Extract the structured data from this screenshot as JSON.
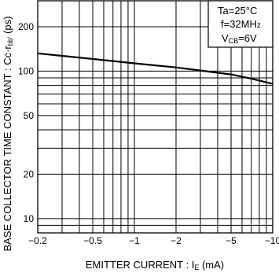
{
  "chart_data": {
    "type": "line",
    "title": "",
    "xlabel": "EMITTER  CURRENT : I",
    "xlabel_sub": "E",
    "xlabel_unit": " (mA)",
    "ylabel": "BASE  COLLECTOR  TIME  CONSTANT : Cc·r",
    "ylabel_sub": "bb'",
    "ylabel_unit": " (ps)",
    "x_scale": "log",
    "y_scale": "log",
    "xlim": [
      -0.2,
      -10
    ],
    "ylim": [
      8,
      300
    ],
    "x_ticks": [
      {
        "value": -0.2,
        "label": "−0.2"
      },
      {
        "value": -0.5,
        "label": "−0.5"
      },
      {
        "value": -1,
        "label": "−1"
      },
      {
        "value": -2,
        "label": "−2"
      },
      {
        "value": -5,
        "label": "−5"
      },
      {
        "value": -10,
        "label": "−10"
      }
    ],
    "y_ticks": [
      {
        "value": 10,
        "label": "10"
      },
      {
        "value": 20,
        "label": "20"
      },
      {
        "value": 50,
        "label": "50"
      },
      {
        "value": 100,
        "label": "100"
      },
      {
        "value": 200,
        "label": "200"
      }
    ],
    "grid": true,
    "conditions": {
      "line1": "Ta=25°C",
      "line2": "f=32MH",
      "line2_suffix": "z",
      "line3_prefix": "V",
      "line3_sub": "CB",
      "line3_suffix": "=6V"
    },
    "series": [
      {
        "x": [
          -0.2,
          -0.3,
          -0.5,
          -0.7,
          -1,
          -2,
          -3,
          -5,
          -7,
          -10
        ],
        "y": [
          132,
          127,
          121,
          117,
          113,
          106,
          101,
          95,
          89,
          82
        ]
      }
    ]
  }
}
